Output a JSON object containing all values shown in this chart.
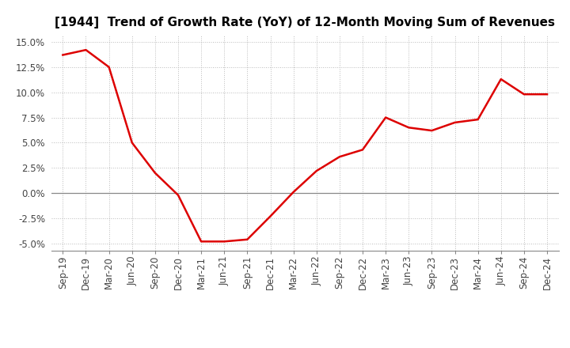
{
  "title": "[1944]  Trend of Growth Rate (YoY) of 12-Month Moving Sum of Revenues",
  "line_color": "#dd0000",
  "line_width": 1.8,
  "background_color": "#ffffff",
  "grid_color": "#bbbbbb",
  "ylim": [
    -0.057,
    0.157
  ],
  "yticks": [
    -0.05,
    -0.025,
    0.0,
    0.025,
    0.05,
    0.075,
    0.1,
    0.125,
    0.15
  ],
  "x_labels": [
    "Sep-19",
    "Dec-19",
    "Mar-20",
    "Jun-20",
    "Sep-20",
    "Dec-20",
    "Mar-21",
    "Jun-21",
    "Sep-21",
    "Dec-21",
    "Mar-22",
    "Jun-22",
    "Sep-22",
    "Dec-22",
    "Mar-23",
    "Jun-23",
    "Sep-23",
    "Dec-23",
    "Mar-24",
    "Jun-24",
    "Sep-24",
    "Dec-24"
  ],
  "y_values": [
    0.137,
    0.142,
    0.125,
    0.05,
    0.02,
    -0.002,
    -0.048,
    -0.048,
    -0.046,
    -0.023,
    0.001,
    0.022,
    0.036,
    0.043,
    0.075,
    0.065,
    0.062,
    0.07,
    0.073,
    0.113,
    0.098,
    0.098
  ],
  "title_fontsize": 11,
  "tick_fontsize": 8.5
}
